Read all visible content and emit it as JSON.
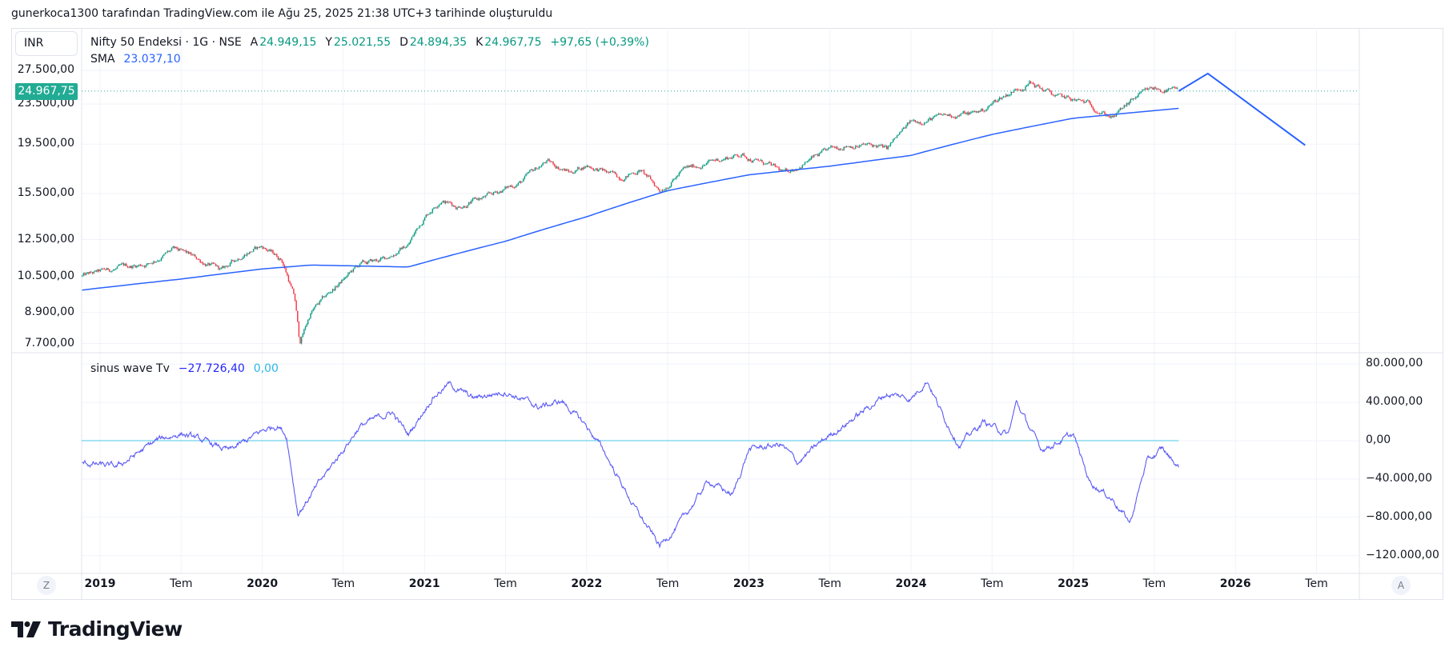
{
  "caption": "gunerkoca1300 tarafından TradingView.com ile Ağu 25, 2025 21:38 UTC+3 tarihinde oluşturuldu",
  "currency": "INR",
  "legend": {
    "symbol": "Nifty 50 Endeksi · 1G · NSE",
    "open_label": "A",
    "open": "24.949,15",
    "high_label": "Y",
    "high": "25.021,55",
    "low_label": "D",
    "low": "24.894,35",
    "close_label": "K",
    "close": "24.967,75",
    "change": "+97,65 (+0,39%)",
    "sma_label": "SMA",
    "sma_value": "23.037,10"
  },
  "indicator_legend": {
    "name": "sinus wave Tv",
    "value1": "−27.726,40",
    "value2": "0,00"
  },
  "last_price_tag": "24.967,75",
  "axis_buttons": {
    "left": "Z",
    "right": "A"
  },
  "brand": "TradingView",
  "colors": {
    "up": "#089981",
    "down": "#f23645",
    "sma": "#2962ff",
    "projection": "#2962ff",
    "sinus": "#5b5bf5",
    "zero_line": "#4dc6e8",
    "price_tag": "#22ab94"
  },
  "chart_data": [
    {
      "type": "candlestick",
      "title": "Nifty 50 Endeksi · 1G · NSE",
      "scale": "log",
      "ylim": [
        7450,
        29000
      ],
      "yticks": [
        {
          "v": 27500,
          "label": "27.500,00"
        },
        {
          "v": 23500,
          "label": "23.500,00"
        },
        {
          "v": 19500,
          "label": "19.500,00"
        },
        {
          "v": 15500,
          "label": "15.500,00"
        },
        {
          "v": 12500,
          "label": "12.500,00"
        },
        {
          "v": 10500,
          "label": "10.500,00"
        },
        {
          "v": 8900,
          "label": "8.900,00"
        },
        {
          "v": 7700,
          "label": "7.700,00"
        }
      ],
      "last_price": 24967.75,
      "price_path": [
        [
          2018.89,
          10540
        ],
        [
          2019.1,
          10900
        ],
        [
          2019.3,
          11200
        ],
        [
          2019.45,
          11900
        ],
        [
          2019.55,
          11600
        ],
        [
          2019.75,
          10800
        ],
        [
          2019.9,
          11800
        ],
        [
          2020.0,
          12100
        ],
        [
          2020.12,
          11400
        ],
        [
          2020.2,
          9500
        ],
        [
          2020.23,
          7700
        ],
        [
          2020.3,
          8900
        ],
        [
          2020.45,
          10000
        ],
        [
          2020.6,
          11100
        ],
        [
          2020.75,
          11400
        ],
        [
          2020.9,
          12200
        ],
        [
          2021.0,
          13900
        ],
        [
          2021.1,
          15100
        ],
        [
          2021.2,
          14600
        ],
        [
          2021.4,
          15300
        ],
        [
          2021.6,
          16400
        ],
        [
          2021.75,
          18000
        ],
        [
          2021.9,
          17100
        ],
        [
          2022.0,
          17700
        ],
        [
          2022.2,
          16700
        ],
        [
          2022.33,
          17300
        ],
        [
          2022.45,
          15700
        ],
        [
          2022.6,
          17300
        ],
        [
          2022.8,
          18100
        ],
        [
          2022.95,
          18600
        ],
        [
          2023.1,
          17800
        ],
        [
          2023.22,
          17000
        ],
        [
          2023.4,
          18300
        ],
        [
          2023.6,
          19500
        ],
        [
          2023.8,
          19300
        ],
        [
          2023.85,
          19000
        ],
        [
          2024.0,
          21600
        ],
        [
          2024.2,
          22200
        ],
        [
          2024.4,
          22600
        ],
        [
          2024.45,
          22900
        ],
        [
          2024.55,
          24200
        ],
        [
          2024.73,
          26000
        ],
        [
          2024.9,
          24300
        ],
        [
          2025.1,
          23500
        ],
        [
          2025.2,
          22500
        ],
        [
          2025.25,
          22100
        ],
        [
          2025.4,
          24400
        ],
        [
          2025.5,
          25200
        ],
        [
          2025.65,
          24968
        ]
      ],
      "sma_label": "SMA",
      "sma_path": [
        [
          2018.89,
          9880
        ],
        [
          2019.5,
          10400
        ],
        [
          2020.0,
          10900
        ],
        [
          2020.3,
          11100
        ],
        [
          2020.9,
          11000
        ],
        [
          2021.5,
          12400
        ],
        [
          2022.0,
          13900
        ],
        [
          2022.5,
          15700
        ],
        [
          2023.0,
          16900
        ],
        [
          2023.5,
          17600
        ],
        [
          2024.0,
          18500
        ],
        [
          2024.5,
          20400
        ],
        [
          2025.0,
          22000
        ],
        [
          2025.65,
          23037
        ]
      ],
      "projection_path": [
        [
          2025.65,
          24968
        ],
        [
          2025.83,
          27100
        ],
        [
          2026.43,
          19400
        ]
      ],
      "xticks": [
        {
          "t": 2019,
          "label": "2019",
          "major": true
        },
        {
          "t": 2019.5,
          "label": "Tem",
          "major": false
        },
        {
          "t": 2020,
          "label": "2020",
          "major": true
        },
        {
          "t": 2020.5,
          "label": "Tem",
          "major": false
        },
        {
          "t": 2021,
          "label": "2021",
          "major": true
        },
        {
          "t": 2021.5,
          "label": "Tem",
          "major": false
        },
        {
          "t": 2022,
          "label": "2022",
          "major": true
        },
        {
          "t": 2022.5,
          "label": "Tem",
          "major": false
        },
        {
          "t": 2023,
          "label": "2023",
          "major": true
        },
        {
          "t": 2023.5,
          "label": "Tem",
          "major": false
        },
        {
          "t": 2024,
          "label": "2024",
          "major": true
        },
        {
          "t": 2024.5,
          "label": "Tem",
          "major": false
        },
        {
          "t": 2025,
          "label": "2025",
          "major": true
        },
        {
          "t": 2025.5,
          "label": "Tem",
          "major": false
        },
        {
          "t": 2026,
          "label": "2026",
          "major": true
        },
        {
          "t": 2026.5,
          "label": "Tem",
          "major": false
        }
      ]
    },
    {
      "type": "line",
      "title": "sinus wave Tv",
      "ylim": [
        -140000,
        95000
      ],
      "yticks": [
        {
          "v": 80000,
          "label": "80.000,00"
        },
        {
          "v": 40000,
          "label": "40.000,00"
        },
        {
          "v": 0,
          "label": "0,00"
        },
        {
          "v": -40000,
          "label": "−40.000,00"
        },
        {
          "v": -80000,
          "label": "−80.000,00"
        },
        {
          "v": -120000,
          "label": "−120.000,00"
        }
      ],
      "zero_line": 0,
      "series": [
        [
          2018.89,
          -23000
        ],
        [
          2019.1,
          -28000
        ],
        [
          2019.35,
          0
        ],
        [
          2019.5,
          8000
        ],
        [
          2019.8,
          -11000
        ],
        [
          2020.0,
          10000
        ],
        [
          2020.1,
          17000
        ],
        [
          2020.15,
          5000
        ],
        [
          2020.22,
          -76000
        ],
        [
          2020.4,
          -33000
        ],
        [
          2020.6,
          15000
        ],
        [
          2020.8,
          30000
        ],
        [
          2020.9,
          6000
        ],
        [
          2021.05,
          46000
        ],
        [
          2021.15,
          59000
        ],
        [
          2021.3,
          44000
        ],
        [
          2021.5,
          52000
        ],
        [
          2021.7,
          35000
        ],
        [
          2021.85,
          41000
        ],
        [
          2022.0,
          15000
        ],
        [
          2022.1,
          -9000
        ],
        [
          2022.3,
          -71000
        ],
        [
          2022.45,
          -110000
        ],
        [
          2022.6,
          -81000
        ],
        [
          2022.75,
          -42000
        ],
        [
          2022.9,
          -57000
        ],
        [
          2023.0,
          -9000
        ],
        [
          2023.2,
          -4000
        ],
        [
          2023.3,
          -23000
        ],
        [
          2023.5,
          6000
        ],
        [
          2023.7,
          30000
        ],
        [
          2023.85,
          49000
        ],
        [
          2024.0,
          44000
        ],
        [
          2024.1,
          64000
        ],
        [
          2024.2,
          25000
        ],
        [
          2024.3,
          -4000
        ],
        [
          2024.45,
          20000
        ],
        [
          2024.6,
          6000
        ],
        [
          2024.65,
          40000
        ],
        [
          2024.8,
          -9000
        ],
        [
          2025.0,
          6000
        ],
        [
          2025.1,
          -42000
        ],
        [
          2025.25,
          -62000
        ],
        [
          2025.35,
          -86000
        ],
        [
          2025.45,
          -23000
        ],
        [
          2025.55,
          -9000
        ],
        [
          2025.65,
          -27726
        ]
      ]
    }
  ]
}
